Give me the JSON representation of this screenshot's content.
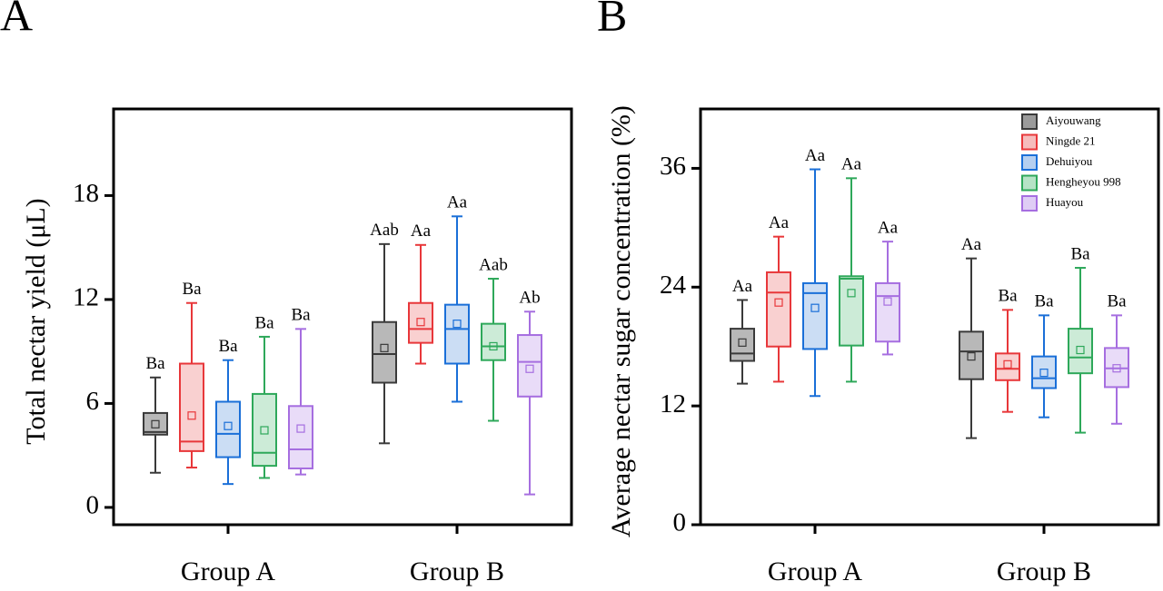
{
  "chart_data": [
    {
      "type": "box",
      "panel_label": "A",
      "ylabel": "Total nectar yield (μL)",
      "categories": [
        "Group A",
        "Group B"
      ],
      "ylim": [
        -1,
        23
      ],
      "yticks": [
        0,
        6,
        12,
        18
      ],
      "series": [
        {
          "color": "#3a3a3a",
          "fill": "#9a9a9a",
          "whisker_low": [
            2.0,
            3.7
          ],
          "q1": [
            4.2,
            7.2
          ],
          "median": [
            4.35,
            8.85
          ],
          "q3": [
            5.45,
            10.7
          ],
          "whisker_high": [
            7.5,
            15.2
          ],
          "mean": [
            4.8,
            9.2
          ],
          "labels": [
            "Ba",
            "Aab"
          ]
        },
        {
          "color": "#e8373a",
          "fill": "#f6bcbc",
          "whisker_low": [
            2.3,
            8.3
          ],
          "q1": [
            3.25,
            9.5
          ],
          "median": [
            3.8,
            10.3
          ],
          "q3": [
            8.3,
            11.8
          ],
          "whisker_high": [
            11.8,
            15.15
          ],
          "mean": [
            5.3,
            10.7
          ],
          "labels": [
            "Ba",
            "Aa"
          ]
        },
        {
          "color": "#1a6fd8",
          "fill": "#b5cff0",
          "whisker_low": [
            1.35,
            6.1
          ],
          "q1": [
            2.9,
            8.3
          ],
          "median": [
            4.25,
            10.3
          ],
          "q3": [
            6.1,
            11.7
          ],
          "whisker_high": [
            8.5,
            16.8
          ],
          "mean": [
            4.7,
            10.6
          ],
          "labels": [
            "Ba",
            "Aa"
          ]
        },
        {
          "color": "#2ea85a",
          "fill": "#b6e3c6",
          "whisker_low": [
            1.7,
            5.0
          ],
          "q1": [
            2.4,
            8.5
          ],
          "median": [
            3.15,
            9.3
          ],
          "q3": [
            6.55,
            10.6
          ],
          "whisker_high": [
            9.85,
            13.2
          ],
          "mean": [
            4.45,
            9.3
          ],
          "labels": [
            "Ba",
            "Aab"
          ]
        },
        {
          "color": "#a66ee0",
          "fill": "#dfcdf5",
          "whisker_low": [
            1.9,
            0.75
          ],
          "q1": [
            2.25,
            6.4
          ],
          "median": [
            3.35,
            8.4
          ],
          "q3": [
            5.85,
            9.95
          ],
          "whisker_high": [
            10.3,
            11.3
          ],
          "mean": [
            4.55,
            8.0
          ],
          "labels": [
            "Ba",
            "Ab"
          ]
        }
      ]
    },
    {
      "type": "box",
      "panel_label": "B",
      "ylabel": "Average nectar sugar concentration (%)",
      "categories": [
        "Group A",
        "Group B"
      ],
      "ylim": [
        0,
        42
      ],
      "yticks": [
        0,
        12,
        24,
        36
      ],
      "legend": "upper right",
      "series": [
        {
          "name": "Aiyouwang",
          "color": "#3a3a3a",
          "fill": "#9a9a9a",
          "whisker_low": [
            14.25,
            8.75
          ],
          "q1": [
            16.55,
            14.7
          ],
          "median": [
            17.3,
            17.5
          ],
          "q3": [
            19.8,
            19.5
          ],
          "whisker_high": [
            22.7,
            26.9
          ],
          "mean": [
            18.4,
            17.0
          ],
          "labels": [
            "Aa",
            "Aa"
          ]
        },
        {
          "name": "Ningde 21",
          "color": "#e8373a",
          "fill": "#f6bcbc",
          "whisker_low": [
            14.45,
            11.4
          ],
          "q1": [
            18.0,
            14.6
          ],
          "median": [
            23.45,
            15.75
          ],
          "q3": [
            25.5,
            17.3
          ],
          "whisker_high": [
            29.1,
            21.7
          ],
          "mean": [
            22.45,
            16.2
          ],
          "labels": [
            "Aa",
            "Ba"
          ]
        },
        {
          "name": "Dehuiyou",
          "color": "#1a6fd8",
          "fill": "#b5cff0",
          "whisker_low": [
            13.0,
            10.85
          ],
          "q1": [
            17.75,
            13.8
          ],
          "median": [
            23.4,
            14.8
          ],
          "q3": [
            24.4,
            17.0
          ],
          "whisker_high": [
            35.9,
            21.15
          ],
          "mean": [
            21.9,
            15.35
          ],
          "labels": [
            "Aa",
            "Ba"
          ]
        },
        {
          "name": "Hengheyou 998",
          "color": "#2ea85a",
          "fill": "#b6e3c6",
          "whisker_low": [
            14.45,
            9.3
          ],
          "q1": [
            18.1,
            15.3
          ],
          "median": [
            24.85,
            16.9
          ],
          "q3": [
            25.1,
            19.8
          ],
          "whisker_high": [
            35.0,
            25.95
          ],
          "mean": [
            23.4,
            17.65
          ],
          "labels": [
            "Aa",
            "Ba"
          ]
        },
        {
          "name": "Huayou",
          "color": "#a66ee0",
          "fill": "#dfcdf5",
          "whisker_low": [
            17.2,
            10.2
          ],
          "q1": [
            18.5,
            13.9
          ],
          "median": [
            23.1,
            15.8
          ],
          "q3": [
            24.4,
            17.85
          ],
          "whisker_high": [
            28.6,
            21.15
          ],
          "mean": [
            22.55,
            15.8
          ],
          "labels": [
            "Aa",
            "Ba"
          ]
        }
      ]
    }
  ]
}
